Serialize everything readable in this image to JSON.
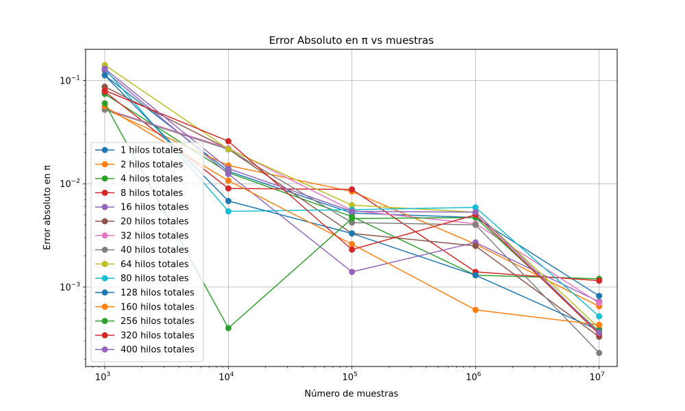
{
  "chart_data": {
    "type": "line",
    "title": "Error Absoluto en π vs muestras",
    "xlabel": "Número de muestras",
    "ylabel": "Error absoluto en π",
    "xscale": "log",
    "yscale": "log",
    "xlim": [
      700,
      14000000
    ],
    "ylim": [
      0.00017,
      0.2
    ],
    "grid": true,
    "legend_position": "lower-left",
    "x": [
      1000,
      10000,
      100000,
      1000000,
      10000000
    ],
    "xticks": [
      {
        "value": 1000,
        "base": "10",
        "exp": "3"
      },
      {
        "value": 10000,
        "base": "10",
        "exp": "4"
      },
      {
        "value": 100000,
        "base": "10",
        "exp": "5"
      },
      {
        "value": 1000000,
        "base": "10",
        "exp": "6"
      },
      {
        "value": 10000000,
        "base": "10",
        "exp": "7"
      }
    ],
    "yticks": [
      {
        "value": 0.001,
        "base": "10",
        "exp": "−3"
      },
      {
        "value": 0.01,
        "base": "10",
        "exp": "−2"
      },
      {
        "value": 0.1,
        "base": "10",
        "exp": "−1"
      }
    ],
    "series": [
      {
        "name": "1 hilos totales",
        "color": "#1f77b4",
        "values": [
          0.112,
          0.0132,
          0.0052,
          0.0047,
          0.00082
        ]
      },
      {
        "name": "2 hilos totales",
        "color": "#ff7f0e",
        "values": [
          0.053,
          0.015,
          0.0084,
          0.0026,
          0.00065
        ]
      },
      {
        "name": "4 hilos totales",
        "color": "#2ca02c",
        "values": [
          0.074,
          0.0128,
          0.0048,
          0.0013,
          0.0012
        ]
      },
      {
        "name": "8 hilos totales",
        "color": "#d62728",
        "values": [
          0.078,
          0.009,
          0.0088,
          0.0014,
          0.00115
        ]
      },
      {
        "name": "16 hilos totales",
        "color": "#9467bd",
        "values": [
          0.124,
          0.0124,
          0.0014,
          0.0027,
          0.00072
        ]
      },
      {
        "name": "20 hilos totales",
        "color": "#8c564b",
        "values": [
          0.087,
          0.0216,
          0.0033,
          0.0025,
          0.00033
        ]
      },
      {
        "name": "32 hilos totales",
        "color": "#e377c2",
        "values": [
          0.053,
          0.022,
          0.0055,
          0.0041,
          0.0007
        ]
      },
      {
        "name": "40 hilos totales",
        "color": "#7f7f7f",
        "values": [
          0.052,
          0.0215,
          0.0042,
          0.004,
          0.00023
        ]
      },
      {
        "name": "64 hilos totales",
        "color": "#bcbd22",
        "values": [
          0.141,
          0.0216,
          0.0062,
          0.0053,
          0.0004
        ]
      },
      {
        "name": "80 hilos totales",
        "color": "#17becf",
        "values": [
          0.13,
          0.0054,
          0.0056,
          0.0059,
          0.00052
        ]
      },
      {
        "name": "128 hilos totales",
        "color": "#1f77b4",
        "values": [
          0.112,
          0.0068,
          0.0033,
          0.0013,
          0.00038
        ]
      },
      {
        "name": "160 hilos totales",
        "color": "#ff7f0e",
        "values": [
          0.056,
          0.0107,
          0.0026,
          0.0006,
          0.00043
        ]
      },
      {
        "name": "256 hilos totales",
        "color": "#2ca02c",
        "values": [
          0.06,
          0.0004,
          0.0046,
          0.0047,
          0.00037
        ]
      },
      {
        "name": "320 hilos totales",
        "color": "#d62728",
        "values": [
          0.08,
          0.0258,
          0.0023,
          0.005,
          0.00035
        ]
      },
      {
        "name": "400 hilos totales",
        "color": "#9467bd",
        "values": [
          0.13,
          0.014,
          0.0054,
          0.0053,
          0.00036
        ]
      }
    ]
  }
}
